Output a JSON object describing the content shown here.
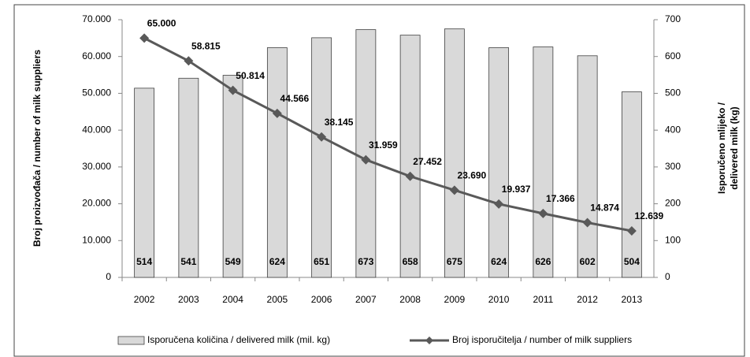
{
  "chart_data": {
    "type": "combo",
    "categories": [
      "2002",
      "2003",
      "2004",
      "2005",
      "2006",
      "2007",
      "2008",
      "2009",
      "2010",
      "2011",
      "2012",
      "2013"
    ],
    "ylabel": "Broj proizvođača / number of milk suppliers",
    "y2label": [
      "Isporučeno mlijeko /",
      "delivered milk (kg)"
    ],
    "ylim": [
      0,
      70000
    ],
    "yticks": [
      0,
      {
        "value": 10000,
        "label": "10.000"
      },
      {
        "value": 20000,
        "label": "20.000"
      },
      {
        "value": 30000,
        "label": "30.000"
      },
      {
        "value": 40000,
        "label": "40.000"
      },
      {
        "value": 50000,
        "label": "50.000"
      },
      {
        "value": 60000,
        "label": "60.000"
      },
      {
        "value": 70000,
        "label": "70.000"
      }
    ],
    "y2lim": [
      0,
      700
    ],
    "y2ticks": [
      0,
      100,
      200,
      300,
      400,
      500,
      600,
      700
    ],
    "series": [
      {
        "name": "Isporučena količina / delivered milk (mil. kg)",
        "type": "bar",
        "axis": "y2",
        "color": "#d9d9d9",
        "values": [
          514,
          541,
          549,
          624,
          651,
          673,
          658,
          675,
          624,
          626,
          602,
          504
        ]
      },
      {
        "name": "Broj isporučitelja / number of milk suppliers",
        "type": "line",
        "color": "#595959",
        "values": [
          65000,
          58815,
          50814,
          44566,
          38145,
          31959,
          27452,
          23690,
          19937,
          17366,
          14874,
          12639
        ],
        "value_labels": [
          "65.000",
          "58.815",
          "50.814",
          "44.566",
          "38.145",
          "31.959",
          "27.452",
          "23.690",
          "19.937",
          "17.366",
          "14.874",
          "12.639"
        ]
      }
    ]
  }
}
